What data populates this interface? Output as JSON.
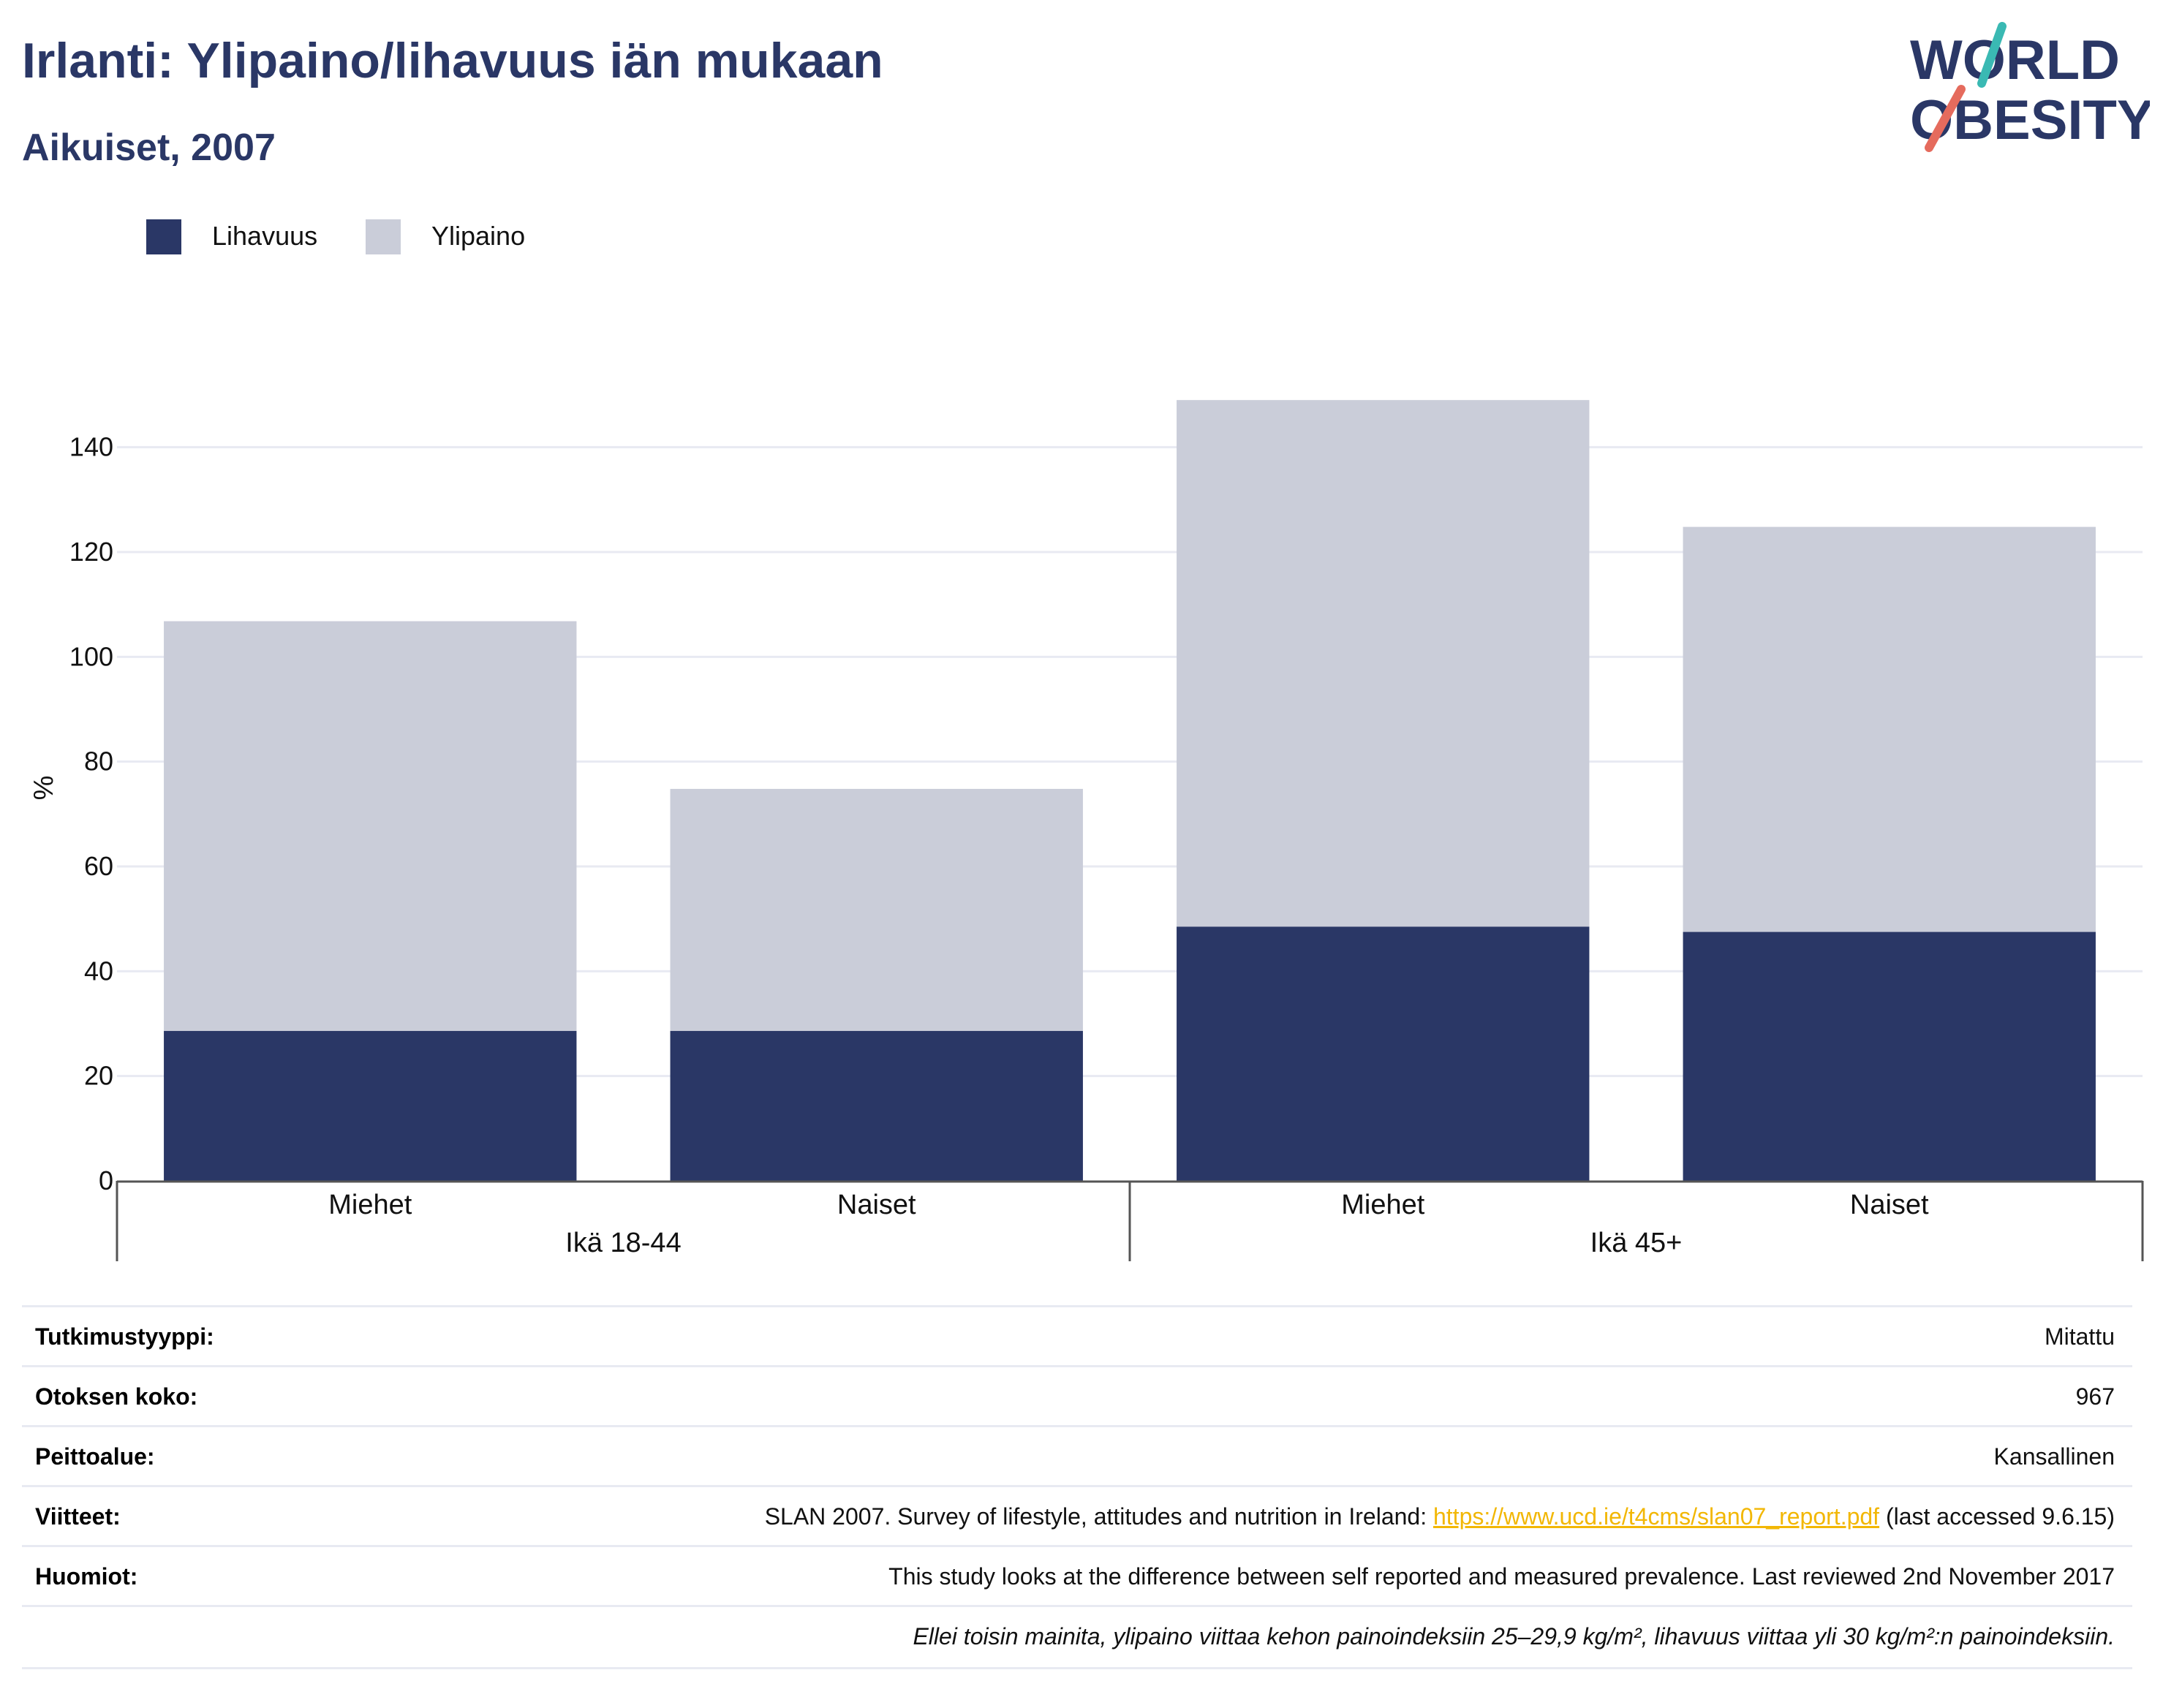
{
  "header": {
    "title": "Irlanti: Ylipaino/lihavuus iän mukaan",
    "subtitle": "Aikuiset, 2007"
  },
  "logo": {
    "line1": "WORLD",
    "line2": "OBESITY",
    "accent_teal": "#3ab9b3",
    "accent_coral": "#e56b5d",
    "text_color": "#2a3766"
  },
  "colors": {
    "obesity": "#2a3766",
    "overweight": "#cacdd9",
    "grid": "#e8eaf2",
    "axis": "#555555"
  },
  "chart_data": {
    "type": "bar",
    "stacked": true,
    "categories": [
      "Miehet",
      "Naiset",
      "Miehet",
      "Naiset"
    ],
    "groups": [
      {
        "label": "Ikä 18-44",
        "categories": [
          "Miehet",
          "Naiset"
        ]
      },
      {
        "label": "Ikä 45+",
        "categories": [
          "Miehet",
          "Naiset"
        ]
      }
    ],
    "series": [
      {
        "name": "Lihavuus",
        "color": "#2a3766",
        "values": [
          28.6,
          28.6,
          48.5,
          47.5
        ]
      },
      {
        "name": "Ylipaino",
        "color": "#cacdd9",
        "values": [
          78.2,
          46.2,
          100.5,
          77.3
        ]
      }
    ],
    "ylabel": "%",
    "ylim": [
      0,
      150
    ],
    "yticks": [
      0,
      20,
      40,
      60,
      80,
      100,
      120,
      140
    ],
    "grid": true,
    "legend_position": "top-left"
  },
  "info": {
    "rows": [
      {
        "key": "Tutkimustyyppi:",
        "value": "Mitattu"
      },
      {
        "key": "Otoksen koko:",
        "value": "967"
      },
      {
        "key": "Peittoalue:",
        "value": "Kansallinen"
      }
    ],
    "references": {
      "key": "Viitteet:",
      "before": "SLAN 2007. Survey of lifestyle, attitudes and nutrition in Ireland: ",
      "link": "https://www.ucd.ie/t4cms/slan07_report.pdf",
      "after": " (last accessed 9.6.15)"
    },
    "notes": {
      "key": "Huomiot:",
      "value": "This study looks at the difference between self reported and measured prevalence. Last reviewed 2nd November 2017"
    },
    "footnote": "Ellei toisin mainita, ylipaino viittaa kehon painoindeksiin 25–29,9 kg/m², lihavuus viittaa yli 30 kg/m²:n painoindeksiin."
  }
}
